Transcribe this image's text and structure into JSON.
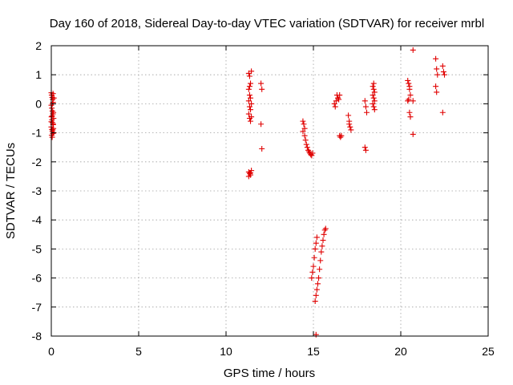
{
  "chart_data": {
    "type": "scatter",
    "title": "Day 160 of 2018, Sidereal Day-to-day VTEC variation (SDTVAR) for receiver mrbl",
    "xlabel": "GPS time / hours",
    "ylabel": "SDTVAR / TECUs",
    "xlim": [
      0,
      25
    ],
    "ylim": [
      -8,
      2
    ],
    "xticks": [
      0,
      5,
      10,
      15,
      20,
      25
    ],
    "yticks": [
      -8,
      -7,
      -6,
      -5,
      -4,
      -3,
      -2,
      -1,
      0,
      1,
      2
    ],
    "xtick_labels": [
      "0",
      "5",
      "10",
      "15",
      "20",
      "25"
    ],
    "ytick_labels": [
      "-8",
      "-7",
      "-6",
      "-5",
      "-4",
      "-3",
      "-2",
      "-1",
      "0",
      "1",
      "2"
    ],
    "grid": true,
    "marker": "plus",
    "color": "#e00000",
    "series": [
      {
        "name": "SDTVAR",
        "points": [
          [
            0.0,
            0.38
          ],
          [
            0.02,
            0.3
          ],
          [
            0.05,
            0.22
          ],
          [
            0.08,
            0.15
          ],
          [
            0.1,
            0.05
          ],
          [
            0.0,
            -0.05
          ],
          [
            0.03,
            -0.15
          ],
          [
            0.06,
            -0.25
          ],
          [
            0.09,
            -0.35
          ],
          [
            0.01,
            -0.45
          ],
          [
            0.04,
            -0.55
          ],
          [
            0.07,
            -0.65
          ],
          [
            0.1,
            -0.72
          ],
          [
            0.0,
            -0.8
          ],
          [
            0.03,
            -0.88
          ],
          [
            0.06,
            -0.95
          ],
          [
            0.09,
            -1.02
          ],
          [
            0.02,
            -1.08
          ],
          [
            0.05,
            -1.15
          ],
          [
            0.08,
            -0.9
          ],
          [
            0.11,
            -0.7
          ],
          [
            0.13,
            -0.5
          ],
          [
            0.12,
            -0.3
          ],
          [
            0.14,
            -1.0
          ],
          [
            0.15,
            0.2
          ],
          [
            0.1,
            0.35
          ],
          [
            0.0,
            -0.62
          ],
          [
            0.05,
            -0.42
          ],
          [
            0.12,
            -0.85
          ],
          [
            0.07,
            0.0
          ],
          [
            11.3,
            1.05
          ],
          [
            11.35,
            0.95
          ],
          [
            11.4,
            0.7
          ],
          [
            11.3,
            0.5
          ],
          [
            11.35,
            0.3
          ],
          [
            11.4,
            0.2
          ],
          [
            11.3,
            0.1
          ],
          [
            11.35,
            -0.1
          ],
          [
            11.4,
            -0.2
          ],
          [
            11.3,
            -0.35
          ],
          [
            11.35,
            -0.5
          ],
          [
            11.4,
            -0.6
          ],
          [
            11.45,
            1.12
          ],
          [
            11.45,
            0.0
          ],
          [
            11.3,
            -2.35
          ],
          [
            11.35,
            -2.4
          ],
          [
            11.4,
            -2.45
          ],
          [
            11.45,
            -2.3
          ],
          [
            11.3,
            -2.5
          ],
          [
            11.4,
            -2.38
          ],
          [
            11.35,
            0.6
          ],
          [
            11.45,
            -0.45
          ],
          [
            12.0,
            0.7
          ],
          [
            12.05,
            0.5
          ],
          [
            12.0,
            -0.7
          ],
          [
            12.05,
            -1.55
          ],
          [
            14.4,
            -0.6
          ],
          [
            14.45,
            -0.7
          ],
          [
            14.5,
            -0.85
          ],
          [
            14.4,
            -0.95
          ],
          [
            14.5,
            -1.1
          ],
          [
            14.55,
            -1.25
          ],
          [
            14.6,
            -1.4
          ],
          [
            14.65,
            -1.5
          ],
          [
            14.7,
            -1.6
          ],
          [
            14.75,
            -1.65
          ],
          [
            14.8,
            -1.7
          ],
          [
            14.85,
            -1.75
          ],
          [
            14.9,
            -1.78
          ],
          [
            14.95,
            -1.7
          ],
          [
            14.9,
            -6.0
          ],
          [
            14.95,
            -5.8
          ],
          [
            15.0,
            -5.6
          ],
          [
            15.05,
            -5.3
          ],
          [
            15.1,
            -5.0
          ],
          [
            15.15,
            -4.8
          ],
          [
            15.2,
            -4.6
          ],
          [
            15.1,
            -6.8
          ],
          [
            15.15,
            -6.6
          ],
          [
            15.2,
            -6.4
          ],
          [
            15.25,
            -6.2
          ],
          [
            15.3,
            -6.0
          ],
          [
            15.35,
            -5.7
          ],
          [
            15.4,
            -5.4
          ],
          [
            15.45,
            -5.1
          ],
          [
            15.5,
            -4.9
          ],
          [
            15.55,
            -4.7
          ],
          [
            15.6,
            -4.5
          ],
          [
            15.65,
            -4.35
          ],
          [
            15.7,
            -4.3
          ],
          [
            15.15,
            -7.95
          ],
          [
            16.2,
            0.0
          ],
          [
            16.25,
            -0.1
          ],
          [
            16.3,
            0.1
          ],
          [
            16.35,
            0.3
          ],
          [
            16.4,
            0.2
          ],
          [
            16.45,
            0.15
          ],
          [
            16.5,
            -1.1
          ],
          [
            16.55,
            -1.15
          ],
          [
            16.6,
            -1.1
          ],
          [
            16.5,
            0.3
          ],
          [
            17.0,
            -0.4
          ],
          [
            17.05,
            -0.6
          ],
          [
            17.1,
            -0.8
          ],
          [
            17.15,
            -0.9
          ],
          [
            17.05,
            -0.7
          ],
          [
            17.95,
            0.1
          ],
          [
            18.0,
            -0.1
          ],
          [
            18.05,
            -0.3
          ],
          [
            17.95,
            -1.5
          ],
          [
            18.0,
            -1.6
          ],
          [
            18.4,
            0.6
          ],
          [
            18.45,
            0.5
          ],
          [
            18.5,
            0.4
          ],
          [
            18.4,
            0.3
          ],
          [
            18.45,
            0.2
          ],
          [
            18.5,
            0.1
          ],
          [
            18.4,
            0.0
          ],
          [
            18.45,
            -0.1
          ],
          [
            18.5,
            -0.2
          ],
          [
            18.45,
            0.7
          ],
          [
            20.4,
            0.8
          ],
          [
            20.45,
            0.7
          ],
          [
            20.5,
            0.5
          ],
          [
            20.55,
            0.3
          ],
          [
            20.4,
            0.1
          ],
          [
            20.5,
            -0.3
          ],
          [
            20.55,
            -0.45
          ],
          [
            20.7,
            0.1
          ],
          [
            20.7,
            1.85
          ],
          [
            20.7,
            -1.05
          ],
          [
            20.45,
            0.15
          ],
          [
            20.5,
            0.6
          ],
          [
            22.0,
            1.55
          ],
          [
            22.05,
            1.2
          ],
          [
            22.1,
            1.0
          ],
          [
            22.0,
            0.6
          ],
          [
            22.05,
            0.4
          ],
          [
            22.4,
            1.3
          ],
          [
            22.45,
            1.1
          ],
          [
            22.5,
            1.0
          ],
          [
            22.4,
            -0.3
          ]
        ]
      }
    ]
  }
}
